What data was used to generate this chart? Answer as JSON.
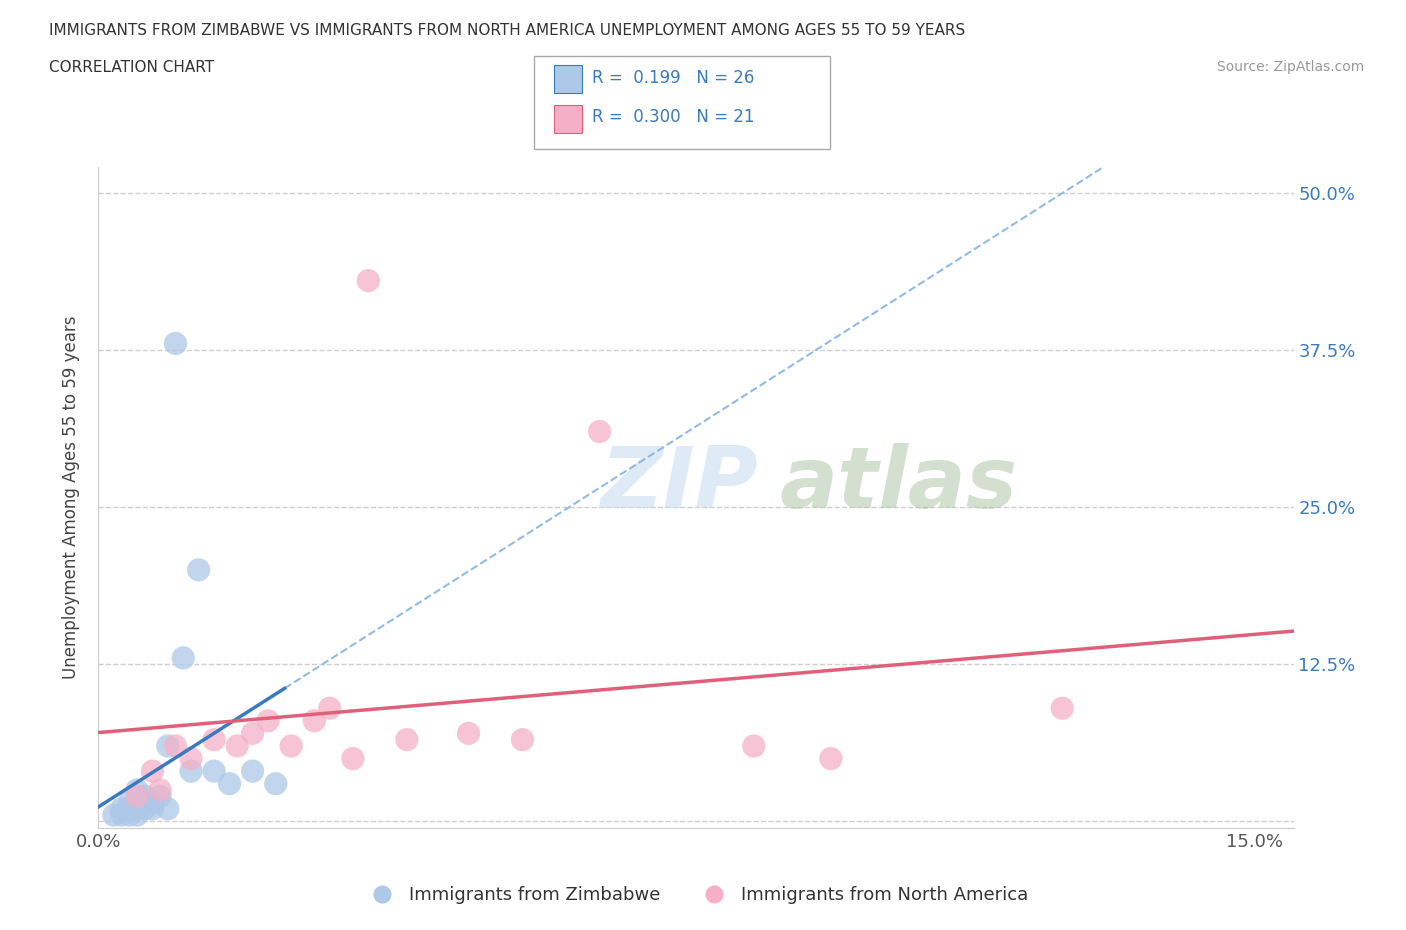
{
  "title_line1": "IMMIGRANTS FROM ZIMBABWE VS IMMIGRANTS FROM NORTH AMERICA UNEMPLOYMENT AMONG AGES 55 TO 59 YEARS",
  "title_line2": "CORRELATION CHART",
  "source": "Source: ZipAtlas.com",
  "ylabel": "Unemployment Among Ages 55 to 59 years",
  "xlim": [
    0.0,
    0.155
  ],
  "ylim": [
    -0.005,
    0.52
  ],
  "ytick_values": [
    0.0,
    0.125,
    0.25,
    0.375,
    0.5
  ],
  "ytick_labels": [
    "",
    "12.5%",
    "25.0%",
    "37.5%",
    "50.0%"
  ],
  "xtick_positions": [
    0.0,
    0.15
  ],
  "xtick_labels": [
    "0.0%",
    "15.0%"
  ],
  "grid_color": "#d0d0d0",
  "watermark_zip": "ZIP",
  "watermark_atlas": "atlas",
  "zimbabwe_color": "#adc8e8",
  "zimbabwe_edge_color": "#adc8e8",
  "zimbabwe_line_color": "#3a7bbf",
  "zimbabwe_dash_color": "#7fb0e0",
  "north_america_color": "#f5b0c8",
  "north_america_edge_color": "#f5b0c8",
  "north_america_line_color": "#e0607a",
  "R_zimbabwe": 0.199,
  "N_zimbabwe": 26,
  "R_north_america": 0.3,
  "N_north_america": 21,
  "zimbabwe_points_x": [
    0.002,
    0.003,
    0.003,
    0.004,
    0.004,
    0.004,
    0.005,
    0.005,
    0.005,
    0.005,
    0.006,
    0.006,
    0.006,
    0.007,
    0.007,
    0.008,
    0.009,
    0.009,
    0.01,
    0.011,
    0.012,
    0.013,
    0.015,
    0.017,
    0.02,
    0.023
  ],
  "zimbabwe_points_y": [
    0.005,
    0.005,
    0.01,
    0.005,
    0.01,
    0.015,
    0.005,
    0.01,
    0.015,
    0.025,
    0.01,
    0.015,
    0.02,
    0.01,
    0.015,
    0.02,
    0.01,
    0.06,
    0.38,
    0.13,
    0.04,
    0.2,
    0.04,
    0.03,
    0.04,
    0.03
  ],
  "north_america_points_x": [
    0.005,
    0.007,
    0.008,
    0.01,
    0.012,
    0.015,
    0.018,
    0.02,
    0.022,
    0.025,
    0.028,
    0.03,
    0.033,
    0.035,
    0.04,
    0.048,
    0.055,
    0.065,
    0.085,
    0.095,
    0.125
  ],
  "north_america_points_y": [
    0.02,
    0.04,
    0.025,
    0.06,
    0.05,
    0.065,
    0.06,
    0.07,
    0.08,
    0.06,
    0.08,
    0.09,
    0.05,
    0.43,
    0.065,
    0.07,
    0.065,
    0.31,
    0.06,
    0.05,
    0.09
  ],
  "legend_label_zim": "Immigrants from Zimbabwe",
  "legend_label_na": "Immigrants from North America"
}
